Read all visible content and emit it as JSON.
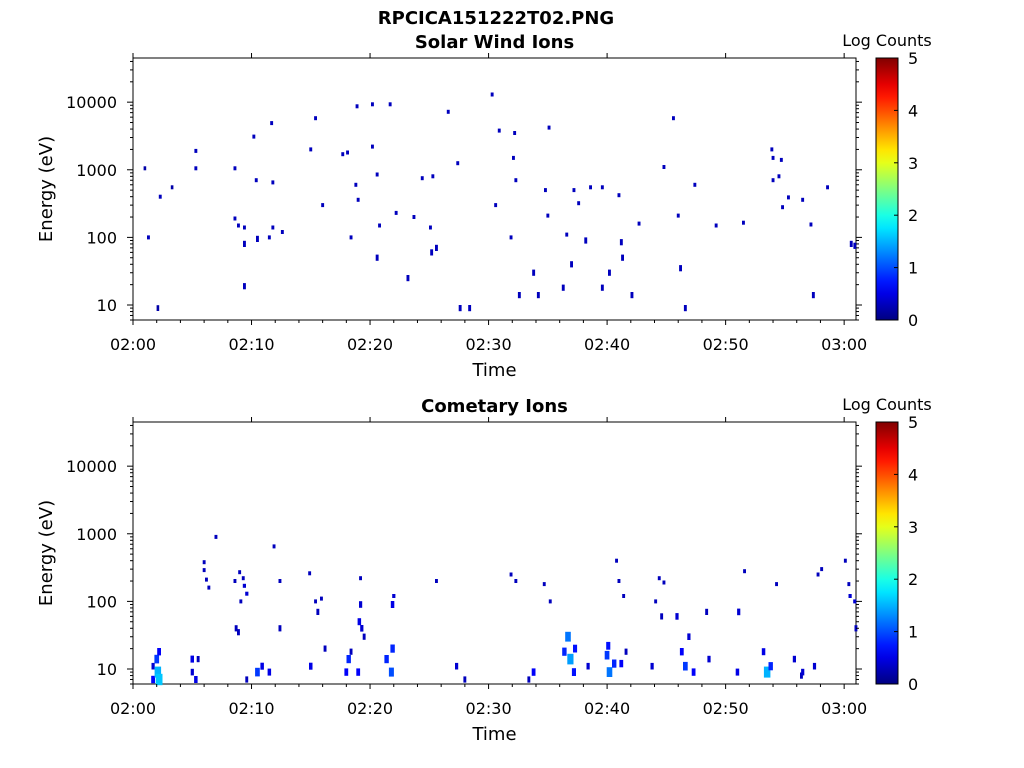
{
  "figure": {
    "title": "RPCICA151222T02.PNG"
  },
  "chart_data": [
    {
      "type": "heatmap",
      "title": "Solar Wind Ions",
      "xlabel": "Time",
      "ylabel": "Energy (eV)",
      "x_ticks": [
        "02:00",
        "02:10",
        "02:20",
        "02:30",
        "02:40",
        "02:50",
        "03:00"
      ],
      "xlim_minutes": [
        0,
        61
      ],
      "y_scale": "log",
      "y_ticks": [
        "10",
        "100",
        "1000",
        "10000"
      ],
      "ylim": [
        6,
        45000
      ],
      "colorbar": {
        "label": "Log Counts",
        "ticks": [
          "0",
          "1",
          "2",
          "3",
          "4",
          "5"
        ],
        "range": [
          0,
          5
        ],
        "colormap": "jet"
      },
      "points": [
        [
          1.0,
          1050,
          0.2
        ],
        [
          1.3,
          100,
          0.3
        ],
        [
          2.3,
          400,
          0.3
        ],
        [
          2.1,
          9,
          0.2
        ],
        [
          3.3,
          550,
          0.2
        ],
        [
          5.3,
          1900,
          0.3
        ],
        [
          5.3,
          1050,
          0.3
        ],
        [
          8.6,
          1050,
          0.3
        ],
        [
          8.6,
          190,
          0.3
        ],
        [
          8.9,
          150,
          0.3
        ],
        [
          9.4,
          140,
          0.3
        ],
        [
          9.4,
          80,
          0.3
        ],
        [
          9.4,
          19,
          0.3
        ],
        [
          10.2,
          3100,
          0.3
        ],
        [
          10.4,
          700,
          0.3
        ],
        [
          10.5,
          95,
          0.3
        ],
        [
          11.5,
          100,
          0.3
        ],
        [
          11.7,
          4900,
          0.3
        ],
        [
          11.8,
          650,
          0.3
        ],
        [
          11.8,
          140,
          0.3
        ],
        [
          12.6,
          120,
          0.3
        ],
        [
          15.0,
          2000,
          0.3
        ],
        [
          15.4,
          5800,
          0.3
        ],
        [
          16.0,
          300,
          0.3
        ],
        [
          17.7,
          1700,
          0.3
        ],
        [
          18.1,
          1800,
          0.3
        ],
        [
          18.4,
          100,
          0.3
        ],
        [
          18.8,
          600,
          0.3
        ],
        [
          18.9,
          8700,
          0.3
        ],
        [
          19.0,
          360,
          0.3
        ],
        [
          20.2,
          9300,
          0.3
        ],
        [
          20.2,
          2200,
          0.3
        ],
        [
          20.6,
          850,
          0.3
        ],
        [
          20.6,
          50,
          0.3
        ],
        [
          20.8,
          150,
          0.3
        ],
        [
          21.7,
          9300,
          0.3
        ],
        [
          22.2,
          230,
          0.3
        ],
        [
          23.2,
          25,
          0.3
        ],
        [
          23.7,
          200,
          0.3
        ],
        [
          24.4,
          750,
          0.3
        ],
        [
          25.1,
          140,
          0.3
        ],
        [
          25.2,
          60,
          0.3
        ],
        [
          25.3,
          800,
          0.3
        ],
        [
          25.6,
          70,
          0.3
        ],
        [
          26.6,
          7200,
          0.3
        ],
        [
          27.4,
          1250,
          0.3
        ],
        [
          27.6,
          9,
          0.3
        ],
        [
          28.4,
          9,
          0.3
        ],
        [
          30.3,
          13000,
          0.3
        ],
        [
          30.6,
          300,
          0.3
        ],
        [
          30.9,
          3800,
          0.3
        ],
        [
          31.9,
          100,
          0.3
        ],
        [
          32.1,
          1500,
          0.3
        ],
        [
          32.2,
          3500,
          0.3
        ],
        [
          32.3,
          700,
          0.3
        ],
        [
          32.6,
          14,
          0.3
        ],
        [
          33.8,
          30,
          0.3
        ],
        [
          34.2,
          14,
          0.3
        ],
        [
          34.8,
          500,
          0.3
        ],
        [
          35.0,
          210,
          0.3
        ],
        [
          35.1,
          4200,
          0.3
        ],
        [
          36.3,
          18,
          0.3
        ],
        [
          36.6,
          110,
          0.3
        ],
        [
          37.0,
          40,
          0.3
        ],
        [
          37.2,
          500,
          0.3
        ],
        [
          37.6,
          320,
          0.3
        ],
        [
          38.2,
          90,
          0.3
        ],
        [
          38.6,
          550,
          0.3
        ],
        [
          39.6,
          18,
          0.3
        ],
        [
          39.6,
          550,
          0.3
        ],
        [
          40.2,
          30,
          0.3
        ],
        [
          41.0,
          420,
          0.3
        ],
        [
          41.2,
          85,
          0.3
        ],
        [
          41.3,
          50,
          0.3
        ],
        [
          42.1,
          14,
          0.3
        ],
        [
          42.7,
          160,
          0.3
        ],
        [
          44.8,
          1100,
          0.3
        ],
        [
          45.6,
          5800,
          0.3
        ],
        [
          46.0,
          210,
          0.3
        ],
        [
          46.2,
          35,
          0.3
        ],
        [
          46.6,
          9,
          0.3
        ],
        [
          47.4,
          600,
          0.3
        ],
        [
          49.2,
          150,
          0.3
        ],
        [
          51.5,
          165,
          0.3
        ],
        [
          53.9,
          2000,
          0.3
        ],
        [
          54.0,
          1500,
          0.3
        ],
        [
          54.0,
          700,
          0.3
        ],
        [
          54.5,
          800,
          0.3
        ],
        [
          54.7,
          1400,
          0.3
        ],
        [
          54.8,
          280,
          0.3
        ],
        [
          55.3,
          390,
          0.3
        ],
        [
          56.5,
          360,
          0.3
        ],
        [
          57.2,
          155,
          0.3
        ],
        [
          57.4,
          14,
          0.3
        ],
        [
          58.6,
          550,
          0.3
        ],
        [
          60.6,
          80,
          0.3
        ],
        [
          60.9,
          75,
          0.3
        ]
      ]
    },
    {
      "type": "heatmap",
      "title": "Cometary Ions",
      "xlabel": "Time",
      "ylabel": "Energy (eV)",
      "x_ticks": [
        "02:00",
        "02:10",
        "02:20",
        "02:30",
        "02:40",
        "02:50",
        "03:00"
      ],
      "xlim_minutes": [
        0,
        61
      ],
      "y_scale": "log",
      "y_ticks": [
        "10",
        "100",
        "1000",
        "10000"
      ],
      "ylim": [
        6,
        45000
      ],
      "colorbar": {
        "label": "Log Counts",
        "ticks": [
          "0",
          "1",
          "2",
          "3",
          "4",
          "5"
        ],
        "range": [
          0,
          5
        ],
        "colormap": "jet"
      },
      "points": [
        [
          1.7,
          11,
          0.4
        ],
        [
          1.7,
          7,
          0.6
        ],
        [
          2.0,
          14,
          0.9
        ],
        [
          2.1,
          9,
          1.5
        ],
        [
          2.2,
          7,
          1.6
        ],
        [
          2.2,
          18,
          0.6
        ],
        [
          5.0,
          9,
          0.4
        ],
        [
          5.0,
          14,
          0.5
        ],
        [
          5.3,
          7,
          0.5
        ],
        [
          5.5,
          14,
          0.3
        ],
        [
          6.0,
          380,
          0.3
        ],
        [
          6.0,
          290,
          0.3
        ],
        [
          6.2,
          210,
          0.3
        ],
        [
          6.4,
          160,
          0.3
        ],
        [
          7.0,
          900,
          0.3
        ],
        [
          8.6,
          200,
          0.3
        ],
        [
          8.7,
          40,
          0.3
        ],
        [
          8.9,
          35,
          0.3
        ],
        [
          9.0,
          270,
          0.3
        ],
        [
          9.1,
          100,
          0.3
        ],
        [
          9.3,
          220,
          0.3
        ],
        [
          9.4,
          170,
          0.4
        ],
        [
          9.6,
          130,
          0.4
        ],
        [
          9.6,
          7,
          0.3
        ],
        [
          10.5,
          9,
          0.9
        ],
        [
          10.9,
          11,
          0.5
        ],
        [
          11.5,
          9,
          0.5
        ],
        [
          11.9,
          650,
          0.3
        ],
        [
          12.4,
          200,
          0.3
        ],
        [
          12.4,
          40,
          0.3
        ],
        [
          14.9,
          260,
          0.3
        ],
        [
          15.0,
          11,
          0.5
        ],
        [
          15.4,
          100,
          0.3
        ],
        [
          15.6,
          70,
          0.3
        ],
        [
          15.9,
          110,
          0.3
        ],
        [
          16.2,
          20,
          0.3
        ],
        [
          18.0,
          9,
          0.6
        ],
        [
          18.2,
          14,
          0.8
        ],
        [
          18.4,
          18,
          0.3
        ],
        [
          19.0,
          9,
          0.6
        ],
        [
          19.1,
          50,
          0.5
        ],
        [
          19.2,
          220,
          0.3
        ],
        [
          19.2,
          90,
          0.4
        ],
        [
          19.3,
          40,
          0.4
        ],
        [
          19.5,
          30,
          0.3
        ],
        [
          21.4,
          14,
          0.8
        ],
        [
          21.8,
          9,
          1.0
        ],
        [
          21.9,
          20,
          0.8
        ],
        [
          21.9,
          90,
          0.5
        ],
        [
          22.0,
          120,
          0.4
        ],
        [
          25.6,
          200,
          0.3
        ],
        [
          27.3,
          11,
          0.4
        ],
        [
          28.0,
          7,
          0.3
        ],
        [
          31.9,
          250,
          0.3
        ],
        [
          32.3,
          200,
          0.3
        ],
        [
          33.4,
          7,
          0.3
        ],
        [
          33.8,
          9,
          0.6
        ],
        [
          34.7,
          180,
          0.3
        ],
        [
          35.2,
          100,
          0.3
        ],
        [
          36.4,
          18,
          0.8
        ],
        [
          36.7,
          30,
          1.2
        ],
        [
          36.9,
          14,
          1.4
        ],
        [
          37.2,
          9,
          0.7
        ],
        [
          37.3,
          20,
          0.7
        ],
        [
          38.4,
          11,
          0.4
        ],
        [
          40.0,
          16,
          0.9
        ],
        [
          40.1,
          22,
          0.7
        ],
        [
          40.2,
          9,
          1.2
        ],
        [
          40.6,
          12,
          0.8
        ],
        [
          40.8,
          400,
          0.3
        ],
        [
          41.0,
          200,
          0.3
        ],
        [
          41.2,
          12,
          0.6
        ],
        [
          41.4,
          120,
          0.3
        ],
        [
          41.6,
          18,
          0.3
        ],
        [
          43.8,
          11,
          0.4
        ],
        [
          44.1,
          100,
          0.3
        ],
        [
          44.4,
          220,
          0.3
        ],
        [
          44.6,
          60,
          0.3
        ],
        [
          44.8,
          190,
          0.3
        ],
        [
          45.9,
          60,
          0.4
        ],
        [
          46.3,
          18,
          0.6
        ],
        [
          46.6,
          11,
          0.9
        ],
        [
          46.9,
          30,
          0.4
        ],
        [
          47.3,
          9,
          0.6
        ],
        [
          48.4,
          70,
          0.3
        ],
        [
          48.6,
          14,
          0.4
        ],
        [
          51.0,
          9,
          0.5
        ],
        [
          51.1,
          70,
          0.4
        ],
        [
          51.6,
          280,
          0.3
        ],
        [
          53.2,
          18,
          0.5
        ],
        [
          53.5,
          9,
          1.5
        ],
        [
          53.8,
          11,
          0.8
        ],
        [
          54.3,
          180,
          0.3
        ],
        [
          55.8,
          14,
          0.4
        ],
        [
          56.4,
          8,
          0.3
        ],
        [
          56.5,
          9,
          0.4
        ],
        [
          57.5,
          11,
          0.4
        ],
        [
          57.8,
          250,
          0.3
        ],
        [
          58.1,
          300,
          0.3
        ],
        [
          60.1,
          400,
          0.3
        ],
        [
          60.4,
          180,
          0.3
        ],
        [
          60.5,
          120,
          0.4
        ],
        [
          60.9,
          100,
          0.4
        ],
        [
          61.0,
          40,
          0.3
        ]
      ]
    }
  ]
}
